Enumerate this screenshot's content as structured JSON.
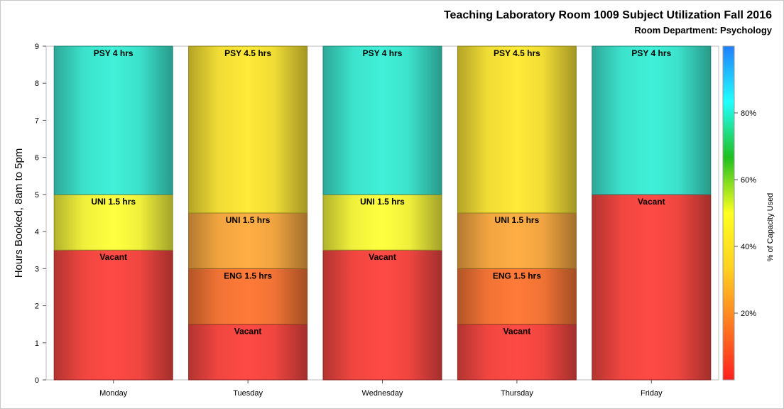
{
  "chart_data": {
    "type": "bar",
    "stacked": true,
    "title": "Teaching Laboratory Room 1009 Subject Utilization Fall 2016",
    "subtitle": "Room Department:  Psychology",
    "xlabel": "",
    "ylabel": "Hours Booked, 8am to 5pm",
    "ylim": [
      0,
      9
    ],
    "yticks": [
      "0",
      "1",
      "2",
      "3",
      "4",
      "5",
      "6",
      "7",
      "8",
      "9"
    ],
    "categories": [
      "Monday",
      "Tuesday",
      "Wednesday",
      "Thursday",
      "Friday"
    ],
    "bars": [
      {
        "day": "Monday",
        "segments": [
          {
            "label": "Vacant",
            "hours": 3.5,
            "color": "#ff4a44"
          },
          {
            "label": "UNI 1.5 hrs",
            "hours": 1.5,
            "color": "#ffff40"
          },
          {
            "label": "PSY 4 hrs",
            "hours": 4,
            "color": "#40f0d8"
          }
        ]
      },
      {
        "day": "Tuesday",
        "segments": [
          {
            "label": "Vacant",
            "hours": 1.5,
            "color": "#ff4a44"
          },
          {
            "label": "ENG 1.5 hrs",
            "hours": 1.5,
            "color": "#ff7a38"
          },
          {
            "label": "UNI 1.5 hrs",
            "hours": 1.5,
            "color": "#ffae44"
          },
          {
            "label": "PSY 4.5 hrs",
            "hours": 4.5,
            "color": "#ffea38"
          }
        ]
      },
      {
        "day": "Wednesday",
        "segments": [
          {
            "label": "Vacant",
            "hours": 3.5,
            "color": "#ff4a44"
          },
          {
            "label": "UNI 1.5 hrs",
            "hours": 1.5,
            "color": "#ffff40"
          },
          {
            "label": "PSY 4 hrs",
            "hours": 4,
            "color": "#40f0d8"
          }
        ]
      },
      {
        "day": "Thursday",
        "segments": [
          {
            "label": "Vacant",
            "hours": 1.5,
            "color": "#ff4a44"
          },
          {
            "label": "ENG 1.5 hrs",
            "hours": 1.5,
            "color": "#ff7a38"
          },
          {
            "label": "UNI 1.5 hrs",
            "hours": 1.5,
            "color": "#ffae44"
          },
          {
            "label": "PSY 4.5 hrs",
            "hours": 4.5,
            "color": "#ffea38"
          }
        ]
      },
      {
        "day": "Friday",
        "segments": [
          {
            "label": "Vacant",
            "hours": 5,
            "color": "#ff4a44"
          },
          {
            "label": "PSY 4 hrs",
            "hours": 4,
            "color": "#40f0d8"
          }
        ]
      }
    ],
    "colorbar": {
      "label": "% of Capacity Used",
      "range": [
        0,
        100
      ],
      "ticks": [
        {
          "value": 20,
          "label": "20%"
        },
        {
          "value": 40,
          "label": "40%"
        },
        {
          "value": 60,
          "label": "60%"
        },
        {
          "value": 80,
          "label": "80%"
        }
      ],
      "gradient": [
        "#ff2020",
        "#ff7a20",
        "#ffd020",
        "#ffff20",
        "#20c020",
        "#20ffff",
        "#2080ff"
      ]
    },
    "grid": false,
    "legend": "colorbar-right"
  }
}
